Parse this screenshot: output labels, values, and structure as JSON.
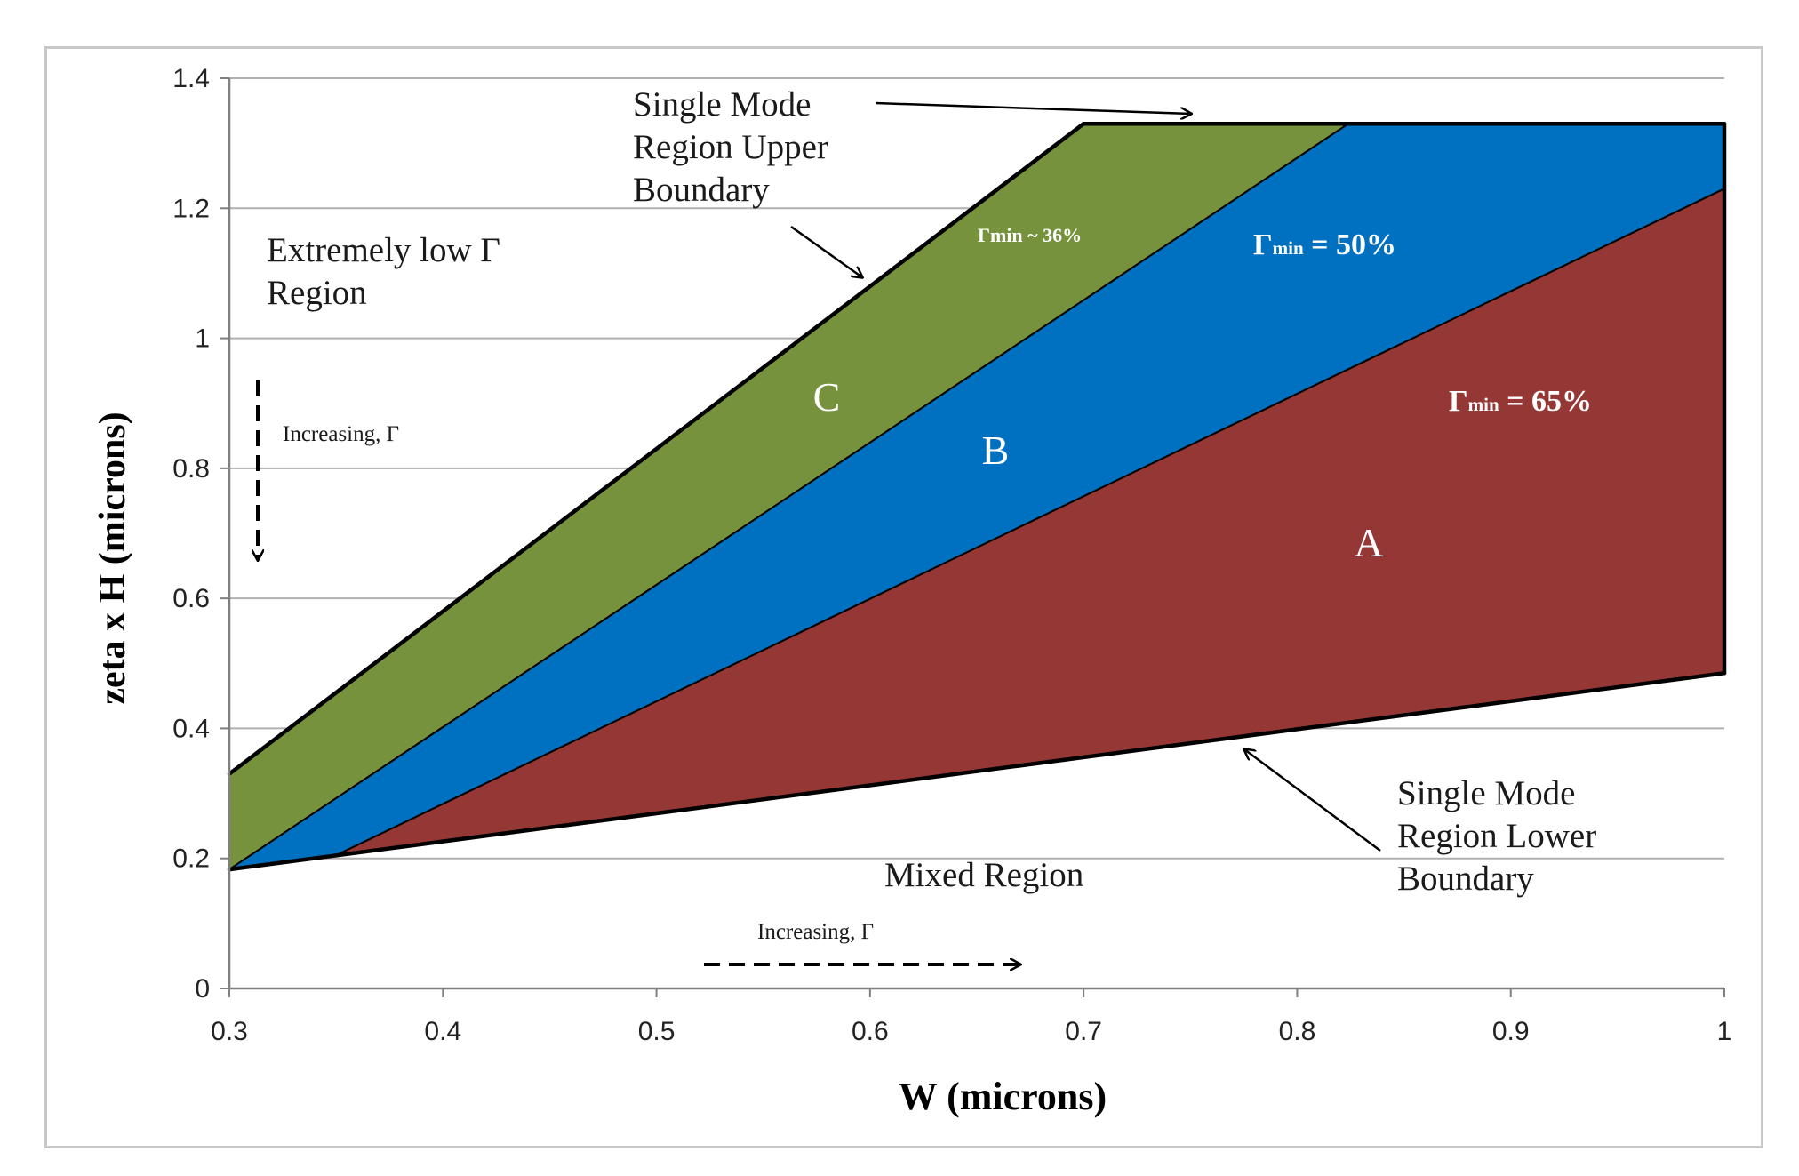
{
  "chart_data": {
    "type": "area",
    "title": "",
    "xlabel": "W (microns)",
    "ylabel": "zeta x H (microns)",
    "xlim": [
      0.3,
      1.0
    ],
    "ylim": [
      0,
      1.4
    ],
    "x_ticks": [
      "0.3",
      "0.4",
      "0.5",
      "0.6",
      "0.7",
      "0.8",
      "0.9",
      "1"
    ],
    "y_ticks": [
      "0",
      "0.2",
      "0.4",
      "0.6",
      "0.8",
      "1",
      "1.2",
      "1.4"
    ],
    "grid": "horizontal",
    "boundaries": {
      "upper_left": [
        [
          0.3,
          0.33
        ],
        [
          0.7,
          1.33
        ]
      ],
      "top": [
        [
          0.7,
          1.33
        ],
        [
          1.0,
          1.33
        ]
      ],
      "right": [
        [
          1.0,
          0.485
        ],
        [
          1.0,
          1.33
        ]
      ],
      "lower": [
        [
          0.3,
          0.183
        ],
        [
          1.0,
          0.485
        ]
      ]
    },
    "regions": [
      {
        "name": "C",
        "color": "#76923c",
        "gamma_label": "Γmin ~ 36%",
        "polygon": [
          [
            0.3,
            0.33
          ],
          [
            0.7,
            1.33
          ],
          [
            0.824,
            1.33
          ],
          [
            0.3,
            0.183
          ]
        ]
      },
      {
        "name": "B",
        "color": "#0070c0",
        "gamma_label": "Γmin = 50%",
        "polygon": [
          [
            0.3,
            0.183
          ],
          [
            0.824,
            1.33
          ],
          [
            1.0,
            1.33
          ],
          [
            1.0,
            1.23
          ],
          [
            0.35,
            0.205
          ]
        ]
      },
      {
        "name": "A",
        "color": "#953735",
        "gamma_label": "Γmin = 65%",
        "polygon": [
          [
            0.35,
            0.205
          ],
          [
            1.0,
            1.23
          ],
          [
            1.0,
            0.485
          ],
          [
            0.3,
            0.183
          ]
        ]
      }
    ],
    "annotations": {
      "upper_boundary": "Single Mode Region Upper Boundary",
      "lower_boundary": "Single Mode Region Lower Boundary",
      "extremely_low": "Extremely low Γ Region",
      "mixed": "Mixed Region",
      "increasing_vertical": "Increasing, Γ",
      "increasing_horizontal": "Increasing, Γ"
    }
  },
  "labels": {
    "upper_1": "Single Mode",
    "upper_2": "Region Upper",
    "upper_3": "Boundary",
    "lower_1": "Single Mode",
    "lower_2": "Region Lower",
    "lower_3": "Boundary",
    "ext_1": "Extremely low Γ",
    "ext_2": "Region",
    "mixed": "Mixed Region",
    "inc_v": "Increasing, Γ",
    "inc_h": "Increasing, Γ",
    "gamma_c": "Γmin ~ 36%",
    "gamma_b_sym": "Γ",
    "gamma_b_sub": "min",
    "gamma_b_val": " = 50%",
    "gamma_a_sym": "Γ",
    "gamma_a_sub": "min",
    "gamma_a_val": " = 65%",
    "region_a": "A",
    "region_b": "B",
    "region_c": "C"
  },
  "colors": {
    "region_c": "#76923c",
    "region_b": "#0070c0",
    "region_a": "#953735",
    "grid": "#b0b0b0"
  }
}
